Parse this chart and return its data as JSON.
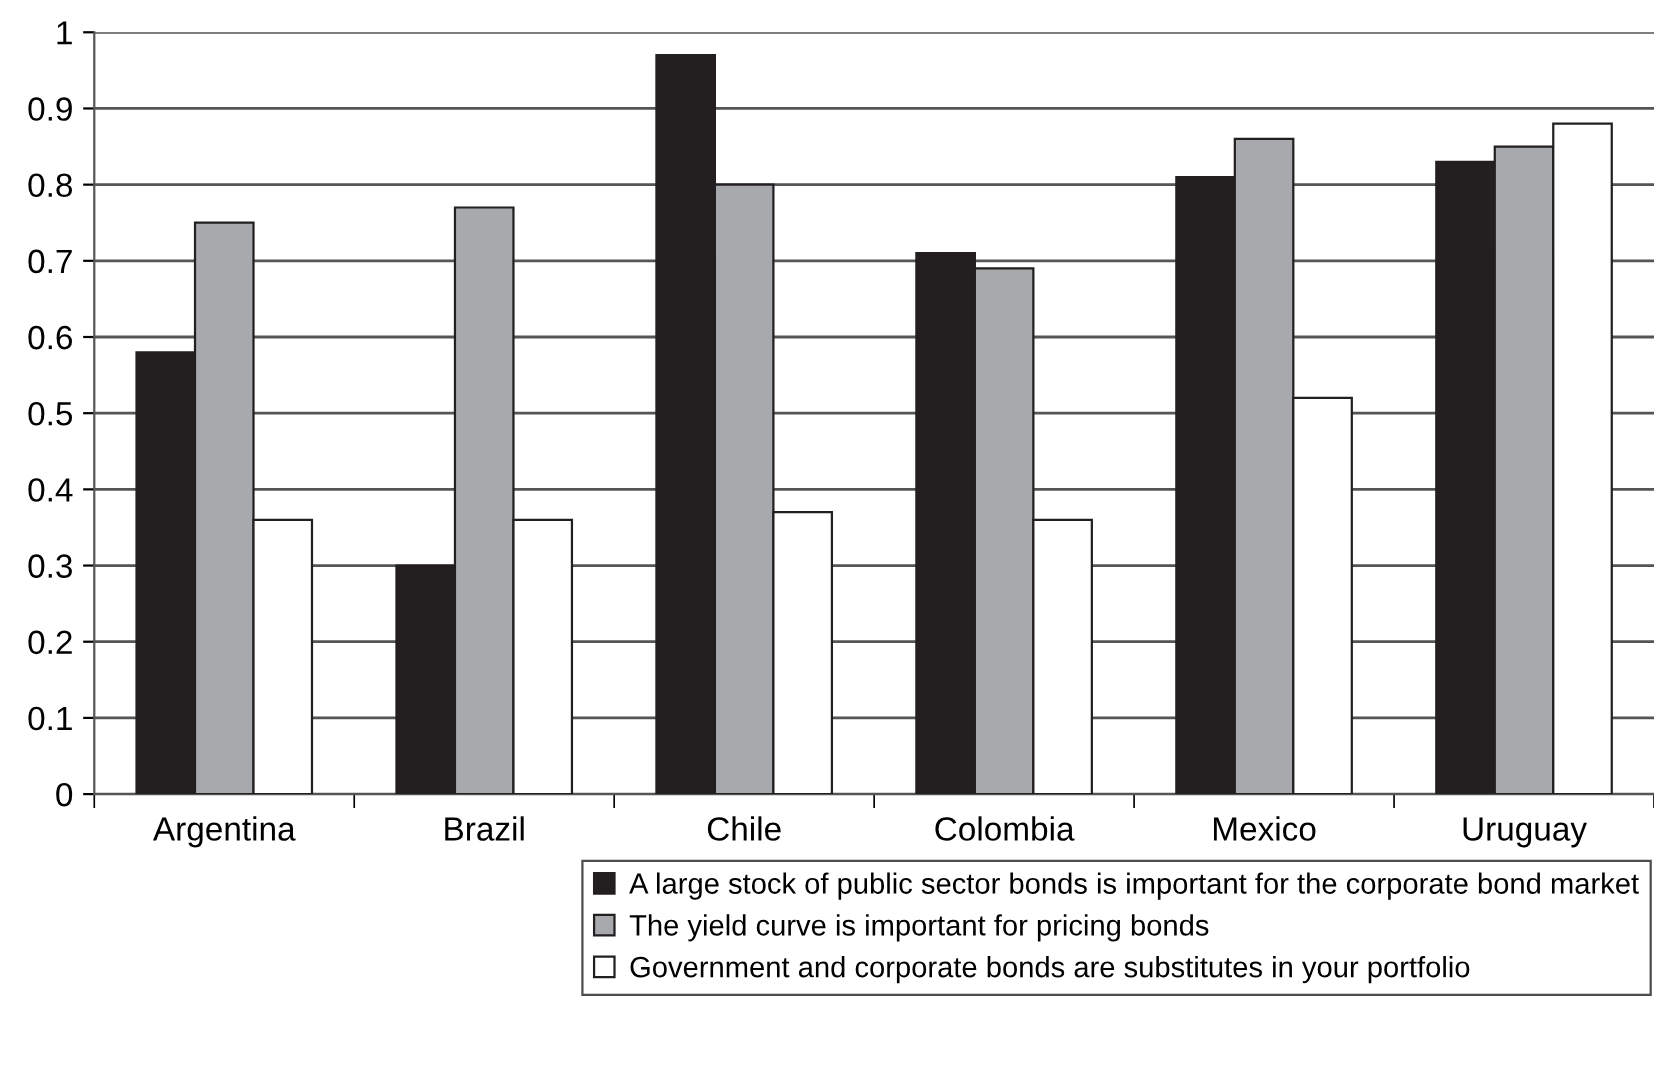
{
  "chart_data": {
    "type": "bar",
    "categories": [
      "Argentina",
      "Brazil",
      "Chile",
      "Colombia",
      "Mexico",
      "Uruguay"
    ],
    "series": [
      {
        "name": "A large stock of public sector bonds is important for the corporate bond market",
        "color": "#231f20",
        "values": [
          0.58,
          0.3,
          0.97,
          0.71,
          0.81,
          0.83
        ]
      },
      {
        "name": "The yield curve is important for pricing bonds",
        "color": "#a7a9ac",
        "values": [
          0.75,
          0.77,
          0.8,
          0.69,
          0.86,
          0.85
        ]
      },
      {
        "name": "Government and corporate bonds are substitutes in your portfolio",
        "color": "#ffffff",
        "values": [
          0.36,
          0.36,
          0.37,
          0.36,
          0.52,
          0.88
        ]
      }
    ],
    "ylim": [
      0,
      1
    ],
    "yticks": [
      0,
      0.1,
      0.2,
      0.3,
      0.4,
      0.5,
      0.6,
      0.7,
      0.8,
      0.9,
      1
    ],
    "grid": "y",
    "legend": "bottom"
  }
}
